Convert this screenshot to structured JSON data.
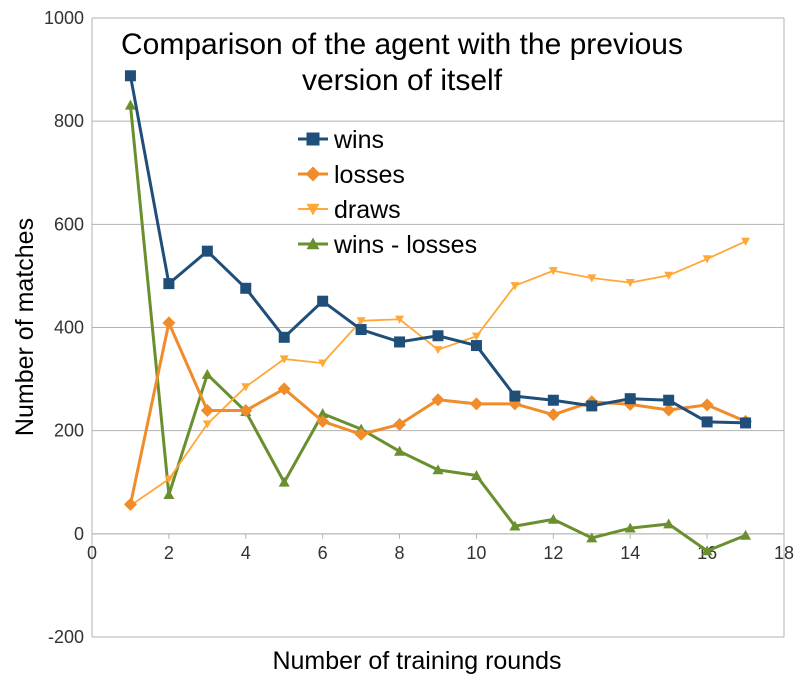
{
  "chart_data": {
    "type": "line",
    "title": [
      "Comparison of the agent with the previous",
      "version of itself"
    ],
    "xlabel": "Number of training rounds",
    "ylabel": "Number of matches",
    "xlim": [
      0,
      18
    ],
    "ylim": [
      -200,
      1000
    ],
    "x_ticks": [
      0,
      2,
      4,
      6,
      8,
      10,
      12,
      14,
      16,
      18
    ],
    "y_ticks": [
      -200,
      0,
      200,
      400,
      600,
      800,
      1000
    ],
    "grid": "horizontal",
    "legend_position": "top-center",
    "x": [
      1,
      2,
      3,
      4,
      5,
      6,
      7,
      8,
      9,
      10,
      11,
      12,
      13,
      14,
      15,
      16,
      17
    ],
    "series": [
      {
        "name": "wins",
        "color": "#1f4e79",
        "marker": "square",
        "values": [
          888,
          485,
          548,
          476,
          381,
          451,
          396,
          372,
          384,
          365,
          267,
          259,
          248,
          262,
          259,
          217,
          215
        ]
      },
      {
        "name": "losses",
        "color": "#f08c2a",
        "marker": "diamond",
        "values": [
          57,
          409,
          239,
          239,
          281,
          218,
          193,
          212,
          260,
          252,
          252,
          231,
          256,
          251,
          240,
          250,
          218
        ]
      },
      {
        "name": "draws",
        "color": "#ffa838",
        "marker": "triangle-down",
        "values": [
          55,
          106,
          213,
          285,
          339,
          331,
          413,
          416,
          357,
          383,
          481,
          510,
          496,
          487,
          501,
          533,
          567
        ]
      },
      {
        "name": "wins - losses",
        "color": "#6a8f2e",
        "marker": "triangle-up",
        "values": [
          831,
          76,
          309,
          237,
          100,
          233,
          203,
          160,
          124,
          113,
          15,
          28,
          -8,
          11,
          19,
          -33,
          -3
        ]
      }
    ]
  }
}
